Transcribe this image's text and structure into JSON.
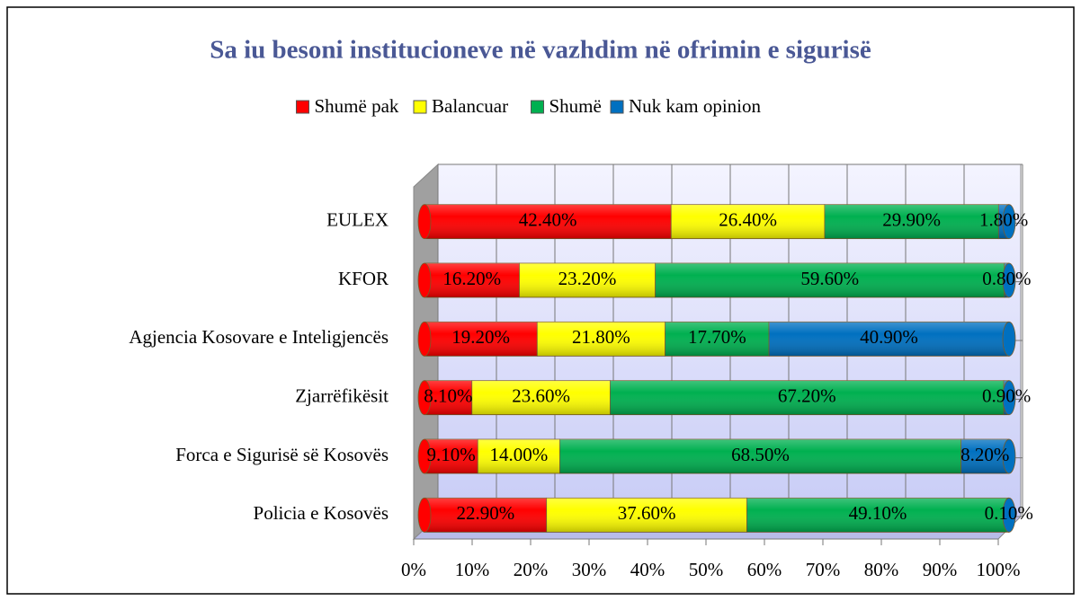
{
  "chart_data": {
    "type": "bar",
    "orientation": "horizontal",
    "stacked": "percent",
    "title": "Sa iu besoni institucioneve në vazhdim në ofrimin e sigurisë",
    "categories": [
      "EULEX",
      "KFOR",
      "Agjencia Kosovare e Inteligjencës",
      "Zjarrëfikësit",
      "Forca e Sigurisë së Kosovës",
      "Policia e Kosovës"
    ],
    "series": [
      {
        "name": "Shumë pak",
        "color": "#ff0000",
        "values": [
          42.4,
          16.2,
          19.2,
          8.1,
          9.1,
          22.9
        ],
        "value_labels": [
          "42.40%",
          "16.20%",
          "19.20%",
          "8.10%",
          "9.10%",
          "22.90%"
        ]
      },
      {
        "name": "Balancuar",
        "color": "#ffff00",
        "values": [
          26.4,
          23.2,
          21.8,
          23.6,
          14.0,
          37.6
        ],
        "value_labels": [
          "26.40%",
          "23.20%",
          "21.80%",
          "23.60%",
          "14.00%",
          "37.60%"
        ]
      },
      {
        "name": "Shumë",
        "color": "#00b050",
        "values": [
          29.9,
          59.6,
          17.7,
          67.2,
          68.5,
          49.1
        ],
        "value_labels": [
          "29.90%",
          "59.60%",
          "17.70%",
          "67.20%",
          "68.50%",
          "49.10%"
        ]
      },
      {
        "name": "Nuk kam opinion",
        "color": "#0070c0",
        "values": [
          1.8,
          0.8,
          40.9,
          0.9,
          8.2,
          0.1
        ],
        "value_labels": [
          "1.80%",
          "0.80%",
          "40.90%",
          "0.90%",
          "8.20%",
          "0.10%"
        ]
      }
    ],
    "xlim": [
      0,
      100
    ],
    "xticks": [
      {
        "value": 0,
        "label": "0%"
      },
      {
        "value": 10,
        "label": "10%"
      },
      {
        "value": 20,
        "label": "20%"
      },
      {
        "value": 30,
        "label": "30%"
      },
      {
        "value": 40,
        "label": "40%"
      },
      {
        "value": 50,
        "label": "50%"
      },
      {
        "value": 60,
        "label": "60%"
      },
      {
        "value": 70,
        "label": "70%"
      },
      {
        "value": 80,
        "label": "80%"
      },
      {
        "value": 90,
        "label": "90%"
      },
      {
        "value": 100,
        "label": "100%"
      }
    ],
    "grid": true,
    "legend": "top"
  }
}
